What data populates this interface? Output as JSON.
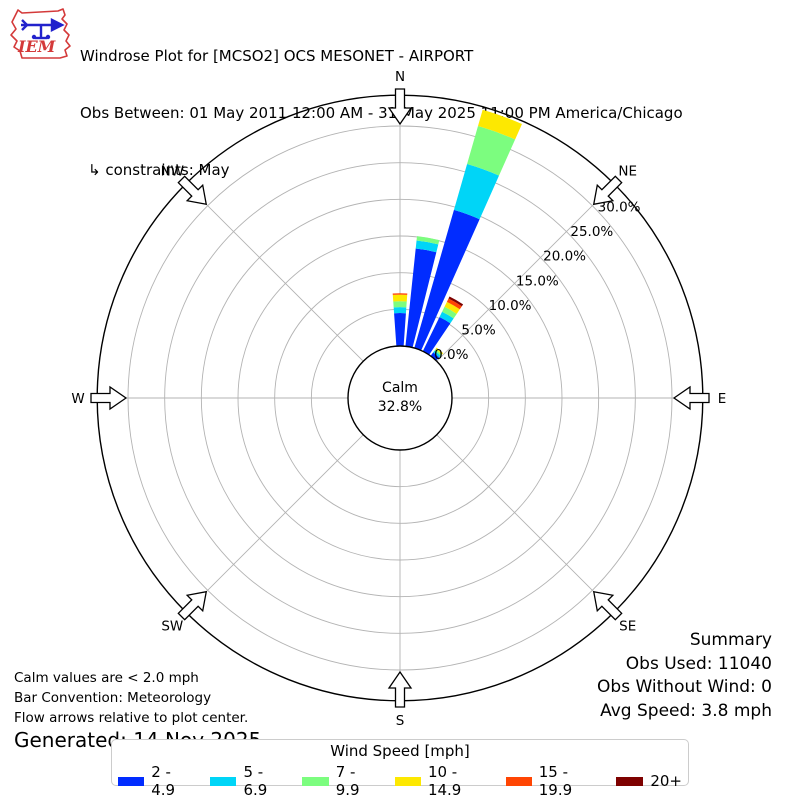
{
  "header": {
    "title": "Windrose Plot for [MCSO2] OCS MESONET - AIRPORT",
    "subtitle": "Obs Between: 01 May 2011 12:00 AM - 31 May 2025 11:00 PM America/Chicago",
    "constraint": "↳ constraints: May"
  },
  "logo": {
    "text": "IEM"
  },
  "summary": {
    "title": "Summary",
    "obs_used": "Obs Used: 11040",
    "obs_without_wind": "Obs Without Wind: 0",
    "avg_speed": "Avg Speed: 3.8 mph"
  },
  "notes": {
    "line1": "Calm values are < 2.0 mph",
    "line2": "Bar Convention: Meteorology",
    "line3": "Flow arrows relative to plot center.",
    "generated": "Generated: 14 Nov 2025"
  },
  "legend": {
    "title": "Wind Speed [mph]",
    "items": [
      {
        "label": "2 - 4.9",
        "color": "#012cff"
      },
      {
        "label": "5 - 6.9",
        "color": "#00d5f7"
      },
      {
        "label": "7 - 9.9",
        "color": "#7cfd7f"
      },
      {
        "label": "10 - 14.9",
        "color": "#fde801"
      },
      {
        "label": "15 - 19.9",
        "color": "#ff4503"
      },
      {
        "label": "20+",
        "color": "#7e0100"
      }
    ]
  },
  "chart_data": {
    "type": "windrose",
    "title": "Windrose Plot for [MCSO2] OCS MESONET - AIRPORT",
    "units": "percent of observations",
    "calm": {
      "label": "Calm",
      "percent_label": "32.8%",
      "percent": 32.8
    },
    "compass": [
      {
        "label": "N",
        "angle_deg": 0
      },
      {
        "label": "NE",
        "angle_deg": 45
      },
      {
        "label": "E",
        "angle_deg": 90
      },
      {
        "label": "SE",
        "angle_deg": 135
      },
      {
        "label": "S",
        "angle_deg": 180
      },
      {
        "label": "SW",
        "angle_deg": 225
      },
      {
        "label": "W",
        "angle_deg": 270
      },
      {
        "label": "NW",
        "angle_deg": 315
      }
    ],
    "rings_percent": [
      5,
      10,
      15,
      20,
      25,
      30
    ],
    "ring_labels": [
      "0.0%",
      "5.0%",
      "10.0%",
      "15.0%",
      "20.0%",
      "25.0%",
      "30.0%"
    ],
    "ring_label_values": [
      0,
      5,
      10,
      15,
      20,
      25,
      30
    ],
    "ring_label_angle_deg": 48,
    "r_axis_outer_percent": 34.2,
    "speed_bins_mph": [
      "2 - 4.9",
      "5 - 6.9",
      "7 - 9.9",
      "10 - 14.9",
      "15 - 19.9",
      "20+"
    ],
    "bin_colors": [
      "#012cff",
      "#00d5f7",
      "#7cfd7f",
      "#fde801",
      "#ff4503",
      "#7e0100"
    ],
    "petal_width_deg": 8,
    "petals": [
      {
        "direction_deg": 0,
        "segments_percent": [
          4.5,
          0.8,
          0.8,
          0.9,
          0.2,
          0
        ],
        "total_percent": 7.2
      },
      {
        "direction_deg": 10,
        "segments_percent": [
          13.4,
          1.1,
          0.6,
          0,
          0,
          0
        ],
        "total_percent": 15.1
      },
      {
        "direction_deg": 20,
        "segments_percent": [
          19.6,
          6.5,
          5.4,
          2.3,
          0,
          0
        ],
        "total_percent": 33.8
      },
      {
        "direction_deg": 30,
        "segments_percent": [
          5.2,
          0.8,
          0.75,
          0.75,
          0.5,
          0.3
        ],
        "total_percent": 8.3
      },
      {
        "direction_deg": 40,
        "segments_percent": [
          0.6,
          0.3,
          0.25,
          0.25,
          0,
          0
        ],
        "total_percent": 1.4
      }
    ],
    "grid_color": "#b3b3b3",
    "axis_color": "#000000"
  }
}
